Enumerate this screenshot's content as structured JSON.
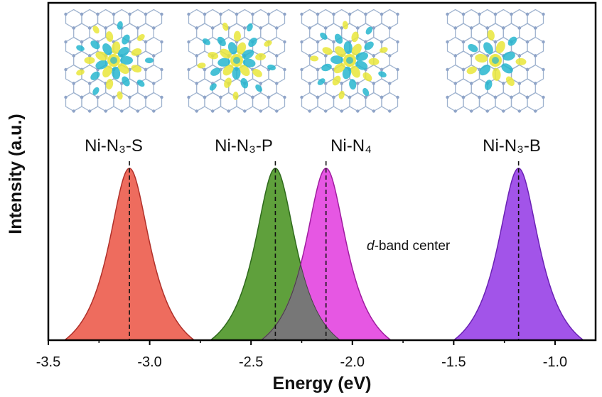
{
  "chart_data": {
    "type": "area",
    "xlabel": "Energy (eV)",
    "ylabel": "Intensity (a.u.)",
    "xlim": [
      -3.5,
      -0.8
    ],
    "xticks": [
      "-3.5",
      "-3.0",
      "-2.5",
      "-2.0",
      "-1.5",
      "-1.0"
    ],
    "xtick_values": [
      -3.5,
      -3.0,
      -2.5,
      -2.0,
      -1.5,
      -1.0
    ],
    "annotation_italic": "d",
    "annotation_rest": "-band center",
    "overlap_color": "#777777",
    "series": [
      {
        "name": "Ni-N₃-S",
        "center": -3.1,
        "color": "#ee6c5e",
        "edge": "#b0302a"
      },
      {
        "name": "Ni-N₃-P",
        "center": -2.38,
        "color": "#5fa03c",
        "edge": "#2f6a1c"
      },
      {
        "name": "Ni-N₄",
        "center": -2.13,
        "color": "#e657e3",
        "edge": "#a01ca0"
      },
      {
        "name": "Ni-N₃-B",
        "center": -1.18,
        "color": "#a254e9",
        "edge": "#6b22b5"
      }
    ],
    "dashed_center_lines": true,
    "grid": false
  },
  "structure_colors": {
    "lattice": "#9fb3cf",
    "cyan": "#27b6cf",
    "yellow": "#e9e63a"
  }
}
